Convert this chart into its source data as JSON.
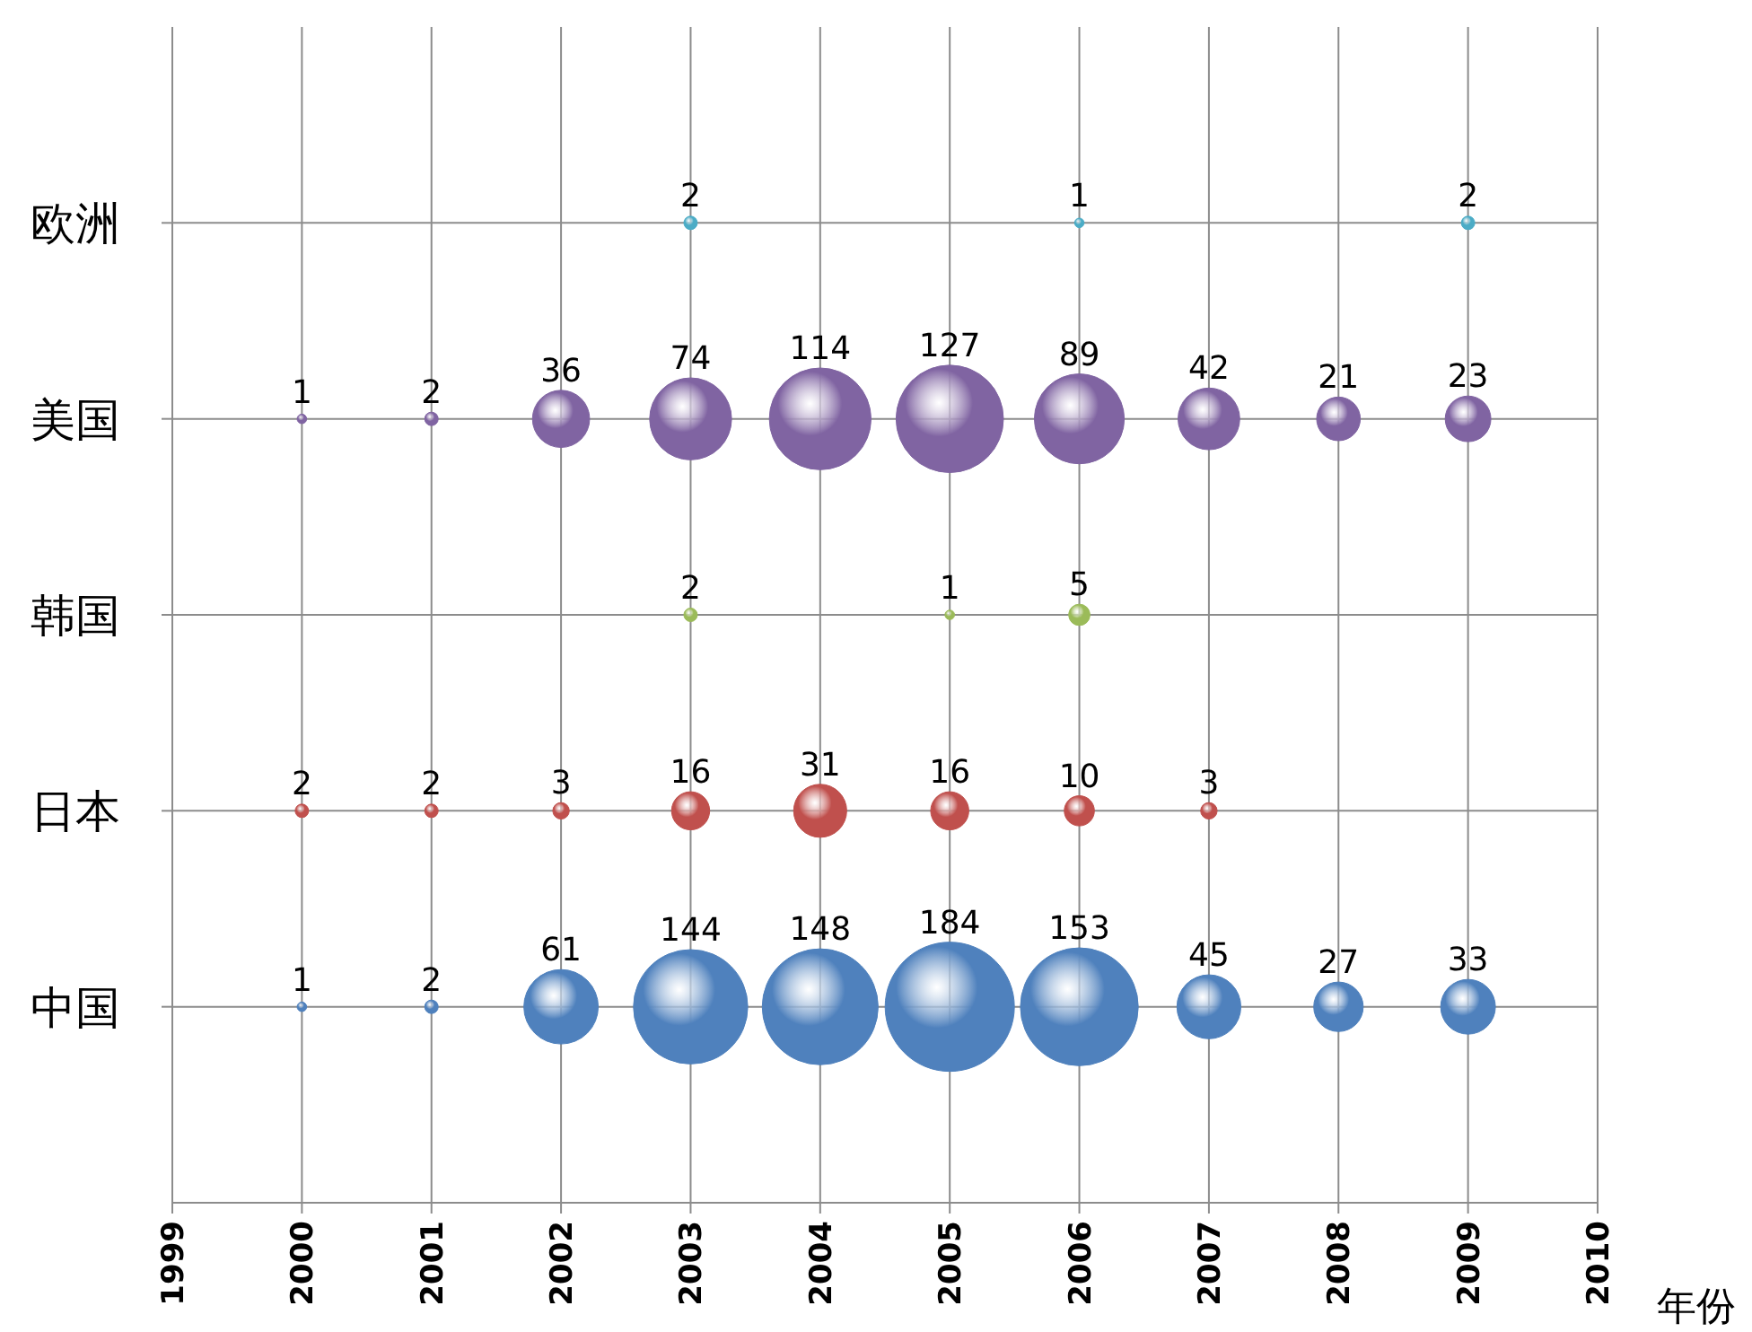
{
  "chart_data": {
    "type": "heatmap",
    "xlabel": "年份",
    "categories": [
      "1999",
      "2000",
      "2001",
      "2002",
      "2003",
      "2004",
      "2005",
      "2006",
      "2007",
      "2008",
      "2009",
      "2010"
    ],
    "y_categories": [
      "欧洲",
      "美国",
      "韩国",
      "日本",
      "中国"
    ],
    "colors": [
      "#4bacc6",
      "#8064a2",
      "#9bbb59",
      "#c0504d",
      "#4f81bd"
    ],
    "grid": true,
    "data_labels": true,
    "cells": [
      [
        null,
        null,
        null,
        null,
        2,
        null,
        null,
        1,
        null,
        null,
        2,
        null
      ],
      [
        null,
        1,
        2,
        36,
        74,
        114,
        127,
        89,
        42,
        21,
        23,
        null
      ],
      [
        null,
        null,
        null,
        null,
        2,
        null,
        1,
        5,
        null,
        null,
        null,
        null
      ],
      [
        null,
        2,
        2,
        3,
        16,
        31,
        16,
        10,
        3,
        null,
        null,
        null
      ],
      [
        null,
        1,
        2,
        61,
        144,
        148,
        184,
        153,
        45,
        27,
        33,
        null
      ]
    ]
  }
}
